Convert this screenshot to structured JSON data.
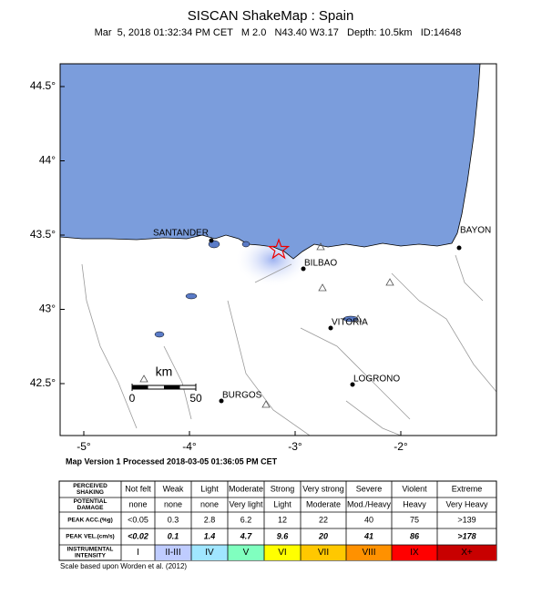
{
  "header": {
    "title": "SISCAN ShakeMap : Spain",
    "subtitle": "Mar  5, 2018 01:32:34 PM CET   M 2.0   N43.40 W3.17   Depth: 10.5km   ID:14648"
  },
  "map": {
    "xticks": [
      {
        "value": -5,
        "label": "-5°"
      },
      {
        "value": -4,
        "label": "-4°"
      },
      {
        "value": -3,
        "label": "-3°"
      },
      {
        "value": -2,
        "label": "-2°"
      }
    ],
    "yticks": [
      {
        "value": 42.5,
        "label": "42.5°"
      },
      {
        "value": 43,
        "label": "43°"
      },
      {
        "value": 43.5,
        "label": "43.5°"
      },
      {
        "value": 44,
        "label": "44°"
      },
      {
        "value": 44.5,
        "label": "44.5°"
      }
    ],
    "cities": [
      "SANTANDER",
      "BILBAO",
      "VITORIA",
      "LOGRONO",
      "BURGOS",
      "BAYON"
    ],
    "scale_bar": {
      "unit": "km",
      "ticks": [
        0,
        50
      ]
    },
    "footer": "Map Version 1 Processed 2018-03-05 01:36:05 PM CET"
  },
  "table": {
    "columns": [
      "Not felt",
      "Weak",
      "Light",
      "Moderate",
      "Strong",
      "Very strong",
      "Severe",
      "Violent",
      "Extreme"
    ],
    "rows": [
      {
        "label": [
          "POTENTIAL",
          "DAMAGE"
        ],
        "cells": [
          "none",
          "none",
          "none",
          "Very light",
          "Light",
          "Moderate",
          "Mod./Heavy",
          "Heavy",
          "Very Heavy"
        ]
      },
      {
        "label": [
          "PEAK ACC.(%g)"
        ],
        "cells": [
          "<0.05",
          "0.3",
          "2.8",
          "6.2",
          "12",
          "22",
          "40",
          "75",
          ">139"
        ]
      },
      {
        "label": [
          "PEAK VEL.(cm/s)"
        ],
        "cells": [
          "<0.02",
          "0.1",
          "1.4",
          "4.7",
          "9.6",
          "20",
          "41",
          "86",
          ">178"
        ]
      },
      {
        "label": [
          "INSTRUMENTAL",
          "INTENSITY"
        ],
        "cells": [
          "I",
          "II-III",
          "IV",
          "V",
          "VI",
          "VII",
          "VIII",
          "IX",
          "X+"
        ],
        "colors": [
          "#ffffff",
          "#bfccff",
          "#a0e6ff",
          "#80ffbf",
          "#ffff00",
          "#ffc800",
          "#ff9100",
          "#ff0000",
          "#c80000"
        ]
      }
    ],
    "header_label": [
      "PERCEIVED",
      "SHAKING"
    ],
    "note": "Scale based upon Worden et al. (2012)"
  }
}
